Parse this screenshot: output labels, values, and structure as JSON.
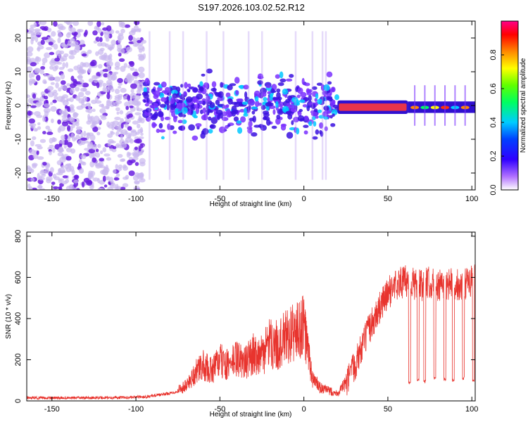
{
  "figure_title": "S197.2026.103.02.52.R12",
  "colors": {
    "line": "#e8342e",
    "scatter_light": "#c9b8f0",
    "scatter_dark": "#6a1fe0",
    "band": "#e8344a"
  },
  "chart_data": [
    {
      "type": "heatmap",
      "title": "",
      "xlabel": "Height of straight line (km)",
      "ylabel": "Frequency (Hz)",
      "xlim": [
        -165,
        102
      ],
      "ylim": [
        -25,
        25
      ],
      "xticks": [
        -150,
        -100,
        -50,
        0,
        50,
        100
      ],
      "yticks": [
        -20,
        -10,
        0,
        10,
        20
      ],
      "colorbar": {
        "label": "Normalized spectral amplitude",
        "range": [
          0,
          1
        ],
        "ticks": [
          "0.0",
          "0.2",
          "0.4",
          "0.6",
          "0.8"
        ],
        "tick_values": [
          0,
          0.2,
          0.4,
          0.6,
          0.8
        ],
        "colormap": [
          "#ffffff",
          "#8800ff",
          "#0000ff",
          "#00ccff",
          "#00ff44",
          "#ffff00",
          "#ff8800",
          "#ff0000",
          "#ff0088"
        ]
      },
      "features": [
        {
          "x_range": [
            -165,
            -95
          ],
          "freq_range": [
            -25,
            25
          ],
          "description_level": 0.15
        },
        {
          "x_range": [
            -95,
            20
          ],
          "freq_range": [
            -8,
            8
          ],
          "description_level": 0.35
        },
        {
          "x_range": [
            20,
            62
          ],
          "freq_range": [
            -1,
            0
          ],
          "description_level": 0.95
        },
        {
          "x_range": [
            62,
            102
          ],
          "freq_range": [
            -2,
            1
          ],
          "description_level": 0.6
        }
      ]
    },
    {
      "type": "line",
      "title": "",
      "xlabel": "Height of straight line (km)",
      "ylabel": "SNR (10 * v/v)",
      "xlim": [
        -165,
        102
      ],
      "ylim": [
        0,
        820
      ],
      "xticks": [
        -150,
        -100,
        -50,
        0,
        50,
        100
      ],
      "yticks": [
        0,
        200,
        400,
        600,
        800
      ],
      "series": [
        {
          "x": [
            -165,
            -150,
            -130,
            -110,
            -95,
            -85,
            -75,
            -70,
            -65,
            -60,
            -55,
            -50,
            -45,
            -40,
            -35,
            -30,
            -25,
            -20,
            -15,
            -10,
            -5,
            0,
            5,
            10,
            15,
            20,
            25,
            30,
            35,
            40,
            45,
            50,
            55,
            60,
            65,
            70,
            75,
            80,
            85,
            90,
            95,
            100,
            102
          ],
          "y": [
            15,
            14,
            15,
            16,
            20,
            30,
            45,
            60,
            110,
            140,
            120,
            160,
            140,
            170,
            150,
            190,
            180,
            230,
            220,
            260,
            270,
            300,
            90,
            50,
            40,
            30,
            70,
            170,
            270,
            370,
            450,
            520,
            570,
            580,
            570,
            560,
            575,
            555,
            570,
            565,
            560,
            580,
            590
          ]
        }
      ],
      "dropouts": {
        "x": [
          63,
          68,
          72,
          78,
          84,
          89,
          95,
          101
        ],
        "y": [
          90,
          100,
          95,
          110,
          105,
          100,
          110,
          100
        ]
      }
    }
  ]
}
